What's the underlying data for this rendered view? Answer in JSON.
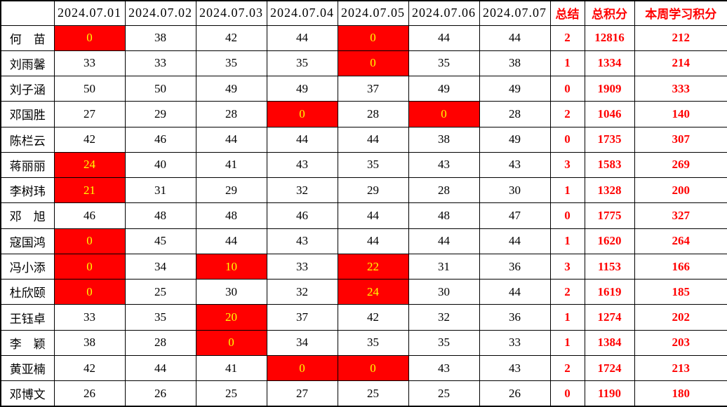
{
  "colors": {
    "flag_bg": "#ff0000",
    "flag_text": "#ffff00",
    "accent_text": "#ff0000",
    "body_text": "#000000",
    "grid_line": "#000000",
    "background": "#ffffff"
  },
  "table": {
    "corner_label": "",
    "date_headers": [
      "2024.07.01",
      "2024.07.02",
      "2024.07.03",
      "2024.07.04",
      "2024.07.05",
      "2024.07.06",
      "2024.07.07"
    ],
    "summary_headers": [
      "总结",
      "总积分",
      "本周学习积分"
    ],
    "rows": [
      {
        "name": "何　苗",
        "days": [
          {
            "v": "0",
            "red": true
          },
          {
            "v": "38"
          },
          {
            "v": "42"
          },
          {
            "v": "44"
          },
          {
            "v": "0",
            "red": true
          },
          {
            "v": "44"
          },
          {
            "v": "44"
          }
        ],
        "summary": "2",
        "total": "12816",
        "week": "212"
      },
      {
        "name": "刘雨馨",
        "days": [
          {
            "v": "33"
          },
          {
            "v": "33"
          },
          {
            "v": "35"
          },
          {
            "v": "35"
          },
          {
            "v": "0",
            "red": true
          },
          {
            "v": "35"
          },
          {
            "v": "38"
          }
        ],
        "summary": "1",
        "total": "1334",
        "week": "214"
      },
      {
        "name": "刘子涵",
        "days": [
          {
            "v": "50"
          },
          {
            "v": "50"
          },
          {
            "v": "49"
          },
          {
            "v": "49"
          },
          {
            "v": "37"
          },
          {
            "v": "49"
          },
          {
            "v": "49"
          }
        ],
        "summary": "0",
        "total": "1909",
        "week": "333"
      },
      {
        "name": "邓国胜",
        "days": [
          {
            "v": "27"
          },
          {
            "v": "29"
          },
          {
            "v": "28"
          },
          {
            "v": "0",
            "red": true
          },
          {
            "v": "28"
          },
          {
            "v": "0",
            "red": true
          },
          {
            "v": "28"
          }
        ],
        "summary": "2",
        "total": "1046",
        "week": "140"
      },
      {
        "name": "陈栏云",
        "days": [
          {
            "v": "42"
          },
          {
            "v": "46"
          },
          {
            "v": "44"
          },
          {
            "v": "44"
          },
          {
            "v": "44"
          },
          {
            "v": "38"
          },
          {
            "v": "49"
          }
        ],
        "summary": "0",
        "total": "1735",
        "week": "307"
      },
      {
        "name": "蒋丽丽",
        "days": [
          {
            "v": "24",
            "red": true
          },
          {
            "v": "40"
          },
          {
            "v": "41"
          },
          {
            "v": "43"
          },
          {
            "v": "35"
          },
          {
            "v": "43"
          },
          {
            "v": "43"
          }
        ],
        "summary": "3",
        "total": "1583",
        "week": "269"
      },
      {
        "name": "李树玮",
        "days": [
          {
            "v": "21",
            "red": true
          },
          {
            "v": "31"
          },
          {
            "v": "29"
          },
          {
            "v": "32"
          },
          {
            "v": "29"
          },
          {
            "v": "28"
          },
          {
            "v": "30"
          }
        ],
        "summary": "1",
        "total": "1328",
        "week": "200"
      },
      {
        "name": "邓　旭",
        "days": [
          {
            "v": "46"
          },
          {
            "v": "48"
          },
          {
            "v": "48"
          },
          {
            "v": "46"
          },
          {
            "v": "44"
          },
          {
            "v": "48"
          },
          {
            "v": "47"
          }
        ],
        "summary": "0",
        "total": "1775",
        "week": "327"
      },
      {
        "name": "寇国鸿",
        "days": [
          {
            "v": "0",
            "red": true
          },
          {
            "v": "45"
          },
          {
            "v": "44"
          },
          {
            "v": "43"
          },
          {
            "v": "44"
          },
          {
            "v": "44"
          },
          {
            "v": "44"
          }
        ],
        "summary": "1",
        "total": "1620",
        "week": "264"
      },
      {
        "name": "冯小添",
        "days": [
          {
            "v": "0",
            "red": true
          },
          {
            "v": "34"
          },
          {
            "v": "10",
            "red": true
          },
          {
            "v": "33"
          },
          {
            "v": "22",
            "red": true
          },
          {
            "v": "31"
          },
          {
            "v": "36"
          }
        ],
        "summary": "3",
        "total": "1153",
        "week": "166"
      },
      {
        "name": "杜欣颐",
        "days": [
          {
            "v": "0",
            "red": true
          },
          {
            "v": "25"
          },
          {
            "v": "30"
          },
          {
            "v": "32"
          },
          {
            "v": "24",
            "red": true
          },
          {
            "v": "30"
          },
          {
            "v": "44"
          }
        ],
        "summary": "2",
        "total": "1619",
        "week": "185"
      },
      {
        "name": "王钰卓",
        "days": [
          {
            "v": "33"
          },
          {
            "v": "35"
          },
          {
            "v": "20",
            "red": true
          },
          {
            "v": "37"
          },
          {
            "v": "42"
          },
          {
            "v": "32"
          },
          {
            "v": "36"
          }
        ],
        "summary": "1",
        "total": "1274",
        "week": "202"
      },
      {
        "name": "李　颖",
        "days": [
          {
            "v": "38"
          },
          {
            "v": "28"
          },
          {
            "v": "0",
            "red": true
          },
          {
            "v": "34"
          },
          {
            "v": "35"
          },
          {
            "v": "35"
          },
          {
            "v": "33"
          }
        ],
        "summary": "1",
        "total": "1384",
        "week": "203"
      },
      {
        "name": "黄亚楠",
        "days": [
          {
            "v": "42"
          },
          {
            "v": "44"
          },
          {
            "v": "41"
          },
          {
            "v": "0",
            "red": true
          },
          {
            "v": "0",
            "red": true
          },
          {
            "v": "43"
          },
          {
            "v": "43"
          }
        ],
        "summary": "2",
        "total": "1724",
        "week": "213"
      },
      {
        "name": "邓博文",
        "days": [
          {
            "v": "26"
          },
          {
            "v": "26"
          },
          {
            "v": "25"
          },
          {
            "v": "27"
          },
          {
            "v": "25"
          },
          {
            "v": "25"
          },
          {
            "v": "26"
          }
        ],
        "summary": "0",
        "total": "1190",
        "week": "180"
      }
    ]
  }
}
